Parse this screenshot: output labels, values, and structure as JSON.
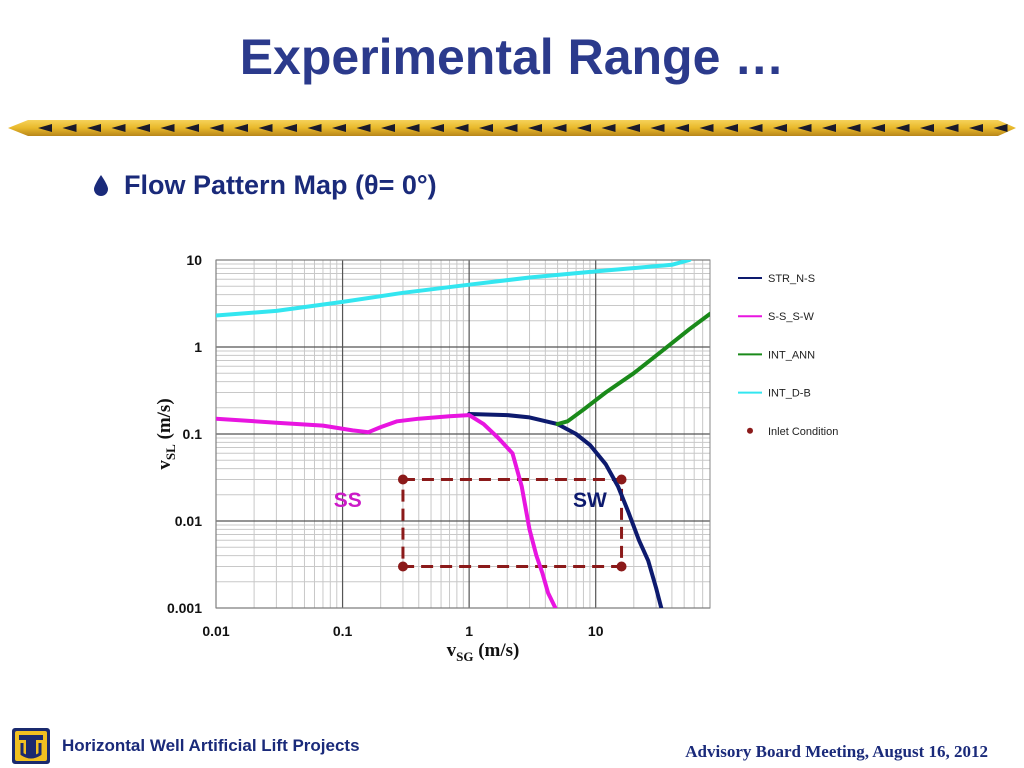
{
  "slide": {
    "title": "Experimental Range …",
    "bullet": "Flow Pattern Map (θ= 0°)",
    "footer_left": "Horizontal Well Artificial Lift Projects",
    "footer_right": "Advisory Board Meeting, August 16, 2012"
  },
  "colors": {
    "title": "#2b3a8c",
    "STR_N-S": "#0d1a6e",
    "S-S_S-W": "#e815e0",
    "INT_ANN": "#1a8a1a",
    "INT_D-B": "#33e6f0",
    "inlet": "#8b1a1a"
  },
  "chart_data": {
    "type": "line",
    "x_scale": "log",
    "y_scale": "log",
    "xlim": [
      0.01,
      80
    ],
    "ylim": [
      0.001,
      10
    ],
    "grid": true,
    "legend_position": "right",
    "xlabel_main": "v",
    "xlabel_sub": "SG",
    "xlabel_unit": " (m/s)",
    "ylabel_main": "v",
    "ylabel_sub": "SL",
    "ylabel_unit": " (m/s)",
    "x_ticks": [
      0.01,
      0.1,
      1,
      10
    ],
    "x_tick_labels": [
      "0.01",
      "0.1",
      "1",
      "10"
    ],
    "y_ticks": [
      0.001,
      0.01,
      0.1,
      1,
      10
    ],
    "y_tick_labels": [
      "0.001",
      "0.01",
      "0.1",
      "1",
      "10"
    ],
    "series": [
      {
        "name": "STR_N-S",
        "x": [
          1,
          2,
          3,
          5,
          7,
          9,
          12,
          15,
          18,
          22,
          26,
          30,
          33
        ],
        "y": [
          0.17,
          0.165,
          0.155,
          0.13,
          0.1,
          0.075,
          0.045,
          0.025,
          0.013,
          0.006,
          0.0035,
          0.0017,
          0.001
        ]
      },
      {
        "name": "S-S_S-W",
        "x": [
          0.01,
          0.03,
          0.07,
          0.12,
          0.16,
          0.2,
          0.27,
          0.4,
          0.7,
          1,
          1.3,
          1.7,
          2.2,
          2.6,
          3,
          3.4,
          3.8,
          4.2,
          4.8
        ],
        "y": [
          0.15,
          0.135,
          0.125,
          0.11,
          0.105,
          0.12,
          0.14,
          0.15,
          0.16,
          0.165,
          0.13,
          0.09,
          0.06,
          0.025,
          0.008,
          0.004,
          0.0025,
          0.0015,
          0.001
        ]
      },
      {
        "name": "INT_ANN",
        "x": [
          5,
          6,
          8,
          12,
          20,
          35,
          55,
          80
        ],
        "y": [
          0.13,
          0.14,
          0.19,
          0.3,
          0.5,
          0.95,
          1.6,
          2.4
        ]
      },
      {
        "name": "INT_D-B",
        "x": [
          0.01,
          0.03,
          0.1,
          0.3,
          1,
          3,
          10,
          25,
          40,
          55
        ],
        "y": [
          2.3,
          2.6,
          3.3,
          4.2,
          5.2,
          6.3,
          7.4,
          8.3,
          8.8,
          10
        ]
      }
    ],
    "inlet_condition": {
      "name": "Inlet Condition",
      "points": [
        {
          "x": 0.3,
          "y": 0.03
        },
        {
          "x": 16,
          "y": 0.03
        },
        {
          "x": 0.3,
          "y": 0.003
        },
        {
          "x": 16,
          "y": 0.003
        }
      ]
    },
    "annotations": [
      {
        "text": "SS",
        "x": 0.11,
        "y": 0.018,
        "color": "#cc1ac8"
      },
      {
        "text": "SW",
        "x": 9,
        "y": 0.018,
        "color": "#0d1a6e"
      }
    ]
  }
}
